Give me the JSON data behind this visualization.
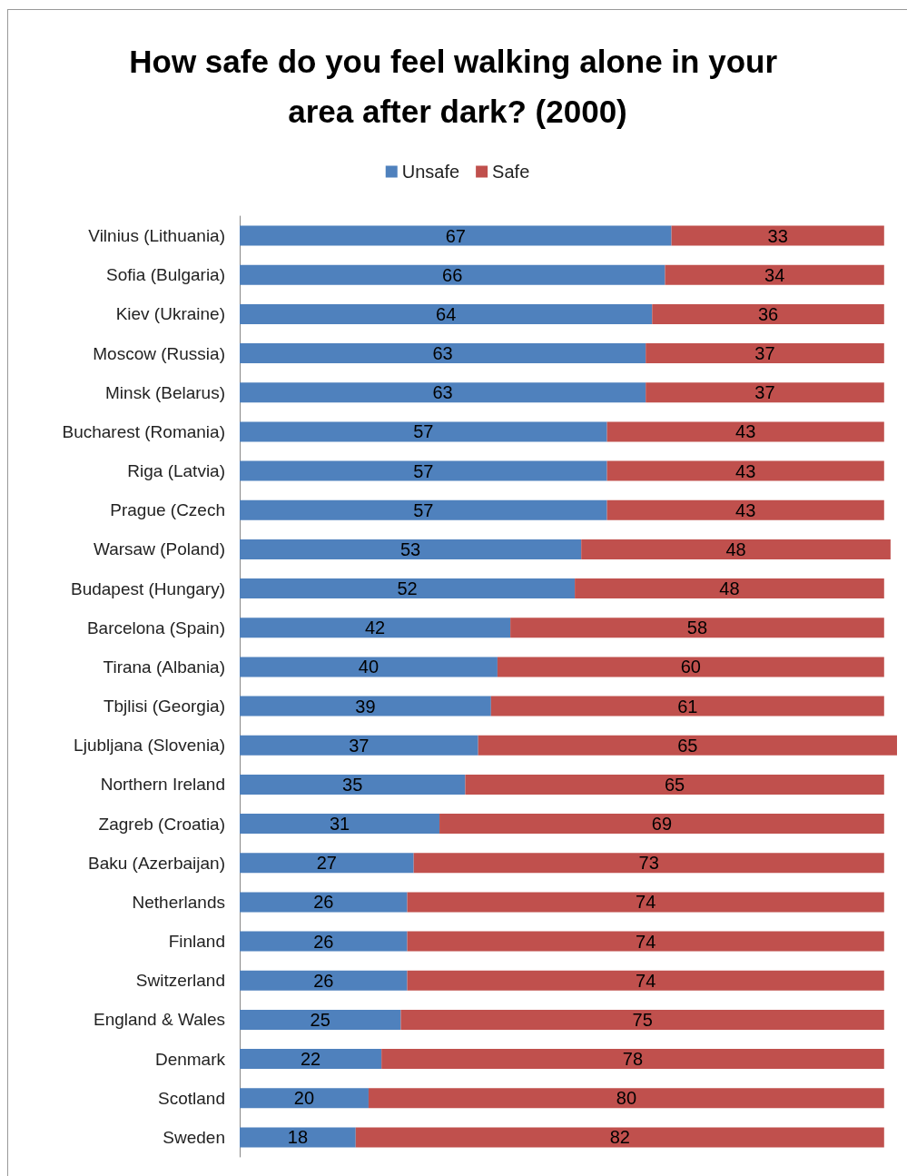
{
  "chart_data": {
    "type": "bar",
    "orientation": "horizontal",
    "stacked": true,
    "title": "How safe do you feel walking alone in your area after dark? (2000)",
    "categories": [
      "Vilnius (Lithuania)",
      "Sofia (Bulgaria)",
      "Kiev (Ukraine)",
      "Moscow (Russia)",
      "Minsk (Belarus)",
      "Bucharest (Romania)",
      "Riga (Latvia)",
      "Prague (Czech",
      "Warsaw (Poland)",
      "Budapest (Hungary)",
      "Barcelona (Spain)",
      "Tirana (Albania)",
      "Tbjlisi (Georgia)",
      "Ljubljana (Slovenia)",
      "Northern Ireland",
      "Zagreb (Croatia)",
      "Baku (Azerbaijan)",
      "Netherlands",
      "Finland",
      "Switzerland",
      "England & Wales",
      "Denmark",
      "Scotland",
      "Sweden"
    ],
    "series": [
      {
        "name": "Unsafe",
        "color": "#4f81bd",
        "values": [
          67,
          66,
          64,
          63,
          63,
          57,
          57,
          57,
          53,
          52,
          42,
          40,
          39,
          37,
          35,
          31,
          27,
          26,
          26,
          26,
          25,
          22,
          20,
          18
        ]
      },
      {
        "name": "Safe",
        "color": "#c0504d",
        "values": [
          33,
          34,
          36,
          37,
          37,
          43,
          43,
          43,
          48,
          48,
          58,
          60,
          61,
          65,
          65,
          69,
          73,
          74,
          74,
          74,
          75,
          78,
          80,
          82
        ]
      }
    ],
    "data_labels": true,
    "legend": "top",
    "tick_labels": "y",
    "grid": false
  }
}
